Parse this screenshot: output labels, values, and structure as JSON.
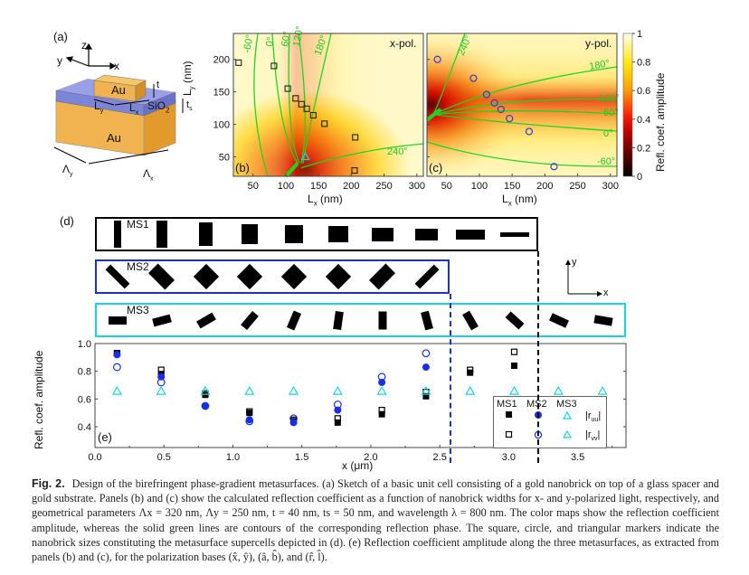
{
  "panel_a": {
    "label": "(a)",
    "axes": {
      "z": "z",
      "y": "y",
      "x": "x"
    },
    "brick": "Au",
    "spacer": "SiO",
    "spacer_sub": "2",
    "substrate": "Au",
    "dims": {
      "t": "t",
      "ts": "t",
      "ts_sub": "s",
      "Lx": "L",
      "Lx_sub": "x",
      "Ly": "L",
      "Ly_sub": "y",
      "Lambda_x": "Λ",
      "Lambda_x_sub": "x",
      "Lambda_y": "Λ",
      "Lambda_y_sub": "y"
    },
    "colors": {
      "gold": "#e8a43c",
      "gold_light": "#f5c765",
      "silica": "#7f86d6"
    }
  },
  "chart_data": [
    {
      "id": "b",
      "type": "heatmap",
      "panel_label": "(b)",
      "pol_label": "x-pol.",
      "xlabel": "L_x (nm)",
      "ylabel": "L_y (nm)",
      "xlim": [
        20,
        310
      ],
      "ylim": [
        20,
        240
      ],
      "xticks": [
        50,
        100,
        150,
        200,
        250,
        300
      ],
      "yticks": [
        50,
        100,
        150,
        200
      ],
      "contour_labels": [
        "-60°",
        "0°",
        "60°",
        "120°",
        "180°",
        "240°"
      ],
      "markers": {
        "squares": [
          [
            28,
            195
          ],
          [
            82,
            190
          ],
          [
            103,
            155
          ],
          [
            115,
            140
          ],
          [
            124,
            131
          ],
          [
            132,
            124
          ],
          [
            142,
            114
          ],
          [
            159,
            101
          ],
          [
            206,
            80
          ],
          [
            205,
            29
          ]
        ],
        "triangle": [
          [
            130,
            50
          ]
        ]
      }
    },
    {
      "id": "c",
      "type": "heatmap",
      "panel_label": "(c)",
      "pol_label": "y-pol.",
      "xlabel": "L_x (nm)",
      "ylabel": "L_y (nm)",
      "xlim": [
        20,
        310
      ],
      "ylim": [
        20,
        240
      ],
      "xticks": [
        50,
        100,
        150,
        200,
        250,
        300
      ],
      "contour_labels": [
        "240°",
        "180°",
        "120°",
        "60°",
        "0°",
        "-60°"
      ],
      "markers": {
        "circles": [
          [
            36,
            200
          ],
          [
            91,
            171
          ],
          [
            111,
            146
          ],
          [
            123,
            133
          ],
          [
            133,
            123
          ],
          [
            146,
            109
          ],
          [
            176,
            89
          ],
          [
            214,
            35
          ]
        ]
      },
      "colorbar": {
        "label": "Refl. coef. amplitude",
        "ticks": [
          "0",
          "0.2",
          "0.4",
          "0.6",
          "0.8",
          "1"
        ],
        "range": [
          0,
          1
        ]
      }
    },
    {
      "id": "e",
      "type": "scatter",
      "panel_label": "(e)",
      "xlabel": "x (μm)",
      "ylabel": "Refl. coef. amplitude",
      "xlim": [
        0.0,
        3.85
      ],
      "ylim": [
        0.25,
        1.0
      ],
      "xticks": [
        "0.0",
        "0.5",
        "1.0",
        "1.5",
        "2.0",
        "2.5",
        "3.0",
        "3.5"
      ],
      "yticks": [
        "0.4",
        "0.6",
        "0.8",
        "1.0"
      ],
      "series": [
        {
          "name": "MS1 |r_uu|",
          "marker": "filled-square",
          "color": "#000000",
          "x": [
            0.16,
            0.48,
            0.8,
            1.12,
            1.44,
            1.76,
            2.08,
            2.4,
            2.72,
            3.04
          ],
          "y": [
            0.93,
            0.78,
            0.63,
            0.5,
            0.44,
            0.43,
            0.49,
            0.62,
            0.79,
            0.84
          ]
        },
        {
          "name": "MS1 |r_vv|",
          "marker": "open-square",
          "color": "#000000",
          "x": [
            0.16,
            0.48,
            0.8,
            1.12,
            1.44,
            1.76,
            2.08,
            2.4,
            2.72,
            3.04
          ],
          "y": [
            0.93,
            0.81,
            0.64,
            0.51,
            0.45,
            0.46,
            0.52,
            0.65,
            0.81,
            0.94
          ]
        },
        {
          "name": "MS2 |r_uu|",
          "marker": "filled-circle",
          "color": "#1a2ee6",
          "x": [
            0.16,
            0.48,
            0.8,
            1.12,
            1.44,
            1.76,
            2.08,
            2.4
          ],
          "y": [
            0.92,
            0.76,
            0.55,
            0.45,
            0.43,
            0.52,
            0.72,
            0.83
          ]
        },
        {
          "name": "MS2 |r_vv|",
          "marker": "open-circle",
          "color": "#1a2ee6",
          "x": [
            0.16,
            0.48,
            0.8,
            1.12,
            1.44,
            1.76,
            2.08,
            2.4
          ],
          "y": [
            0.83,
            0.72,
            0.55,
            0.44,
            0.46,
            0.56,
            0.76,
            0.93
          ]
        },
        {
          "name": "MS3 |r_uu|",
          "marker": "open-triangle",
          "color": "#19d4e0",
          "x": [
            0.16,
            0.48,
            0.8,
            1.12,
            1.44,
            1.76,
            2.08,
            2.4,
            2.72,
            3.04,
            3.36,
            3.68
          ],
          "y": [
            0.66,
            0.66,
            0.66,
            0.66,
            0.66,
            0.66,
            0.66,
            0.66,
            0.66,
            0.66,
            0.66,
            0.66
          ]
        }
      ],
      "dashed_lines": [
        {
          "x": 2.56,
          "color": "#1a2ee6"
        },
        {
          "x": 3.2,
          "color": "#000000"
        }
      ],
      "legend": {
        "placement": "bottom-right",
        "columns": [
          "MS1",
          "MS2",
          "MS3"
        ],
        "rows": [
          "|r_uu|",
          "|r_vv|"
        ]
      }
    }
  ],
  "panel_d": {
    "label": "(d)",
    "coord_axes": {
      "x": "x",
      "y": "y"
    },
    "rows": [
      {
        "name": "MS1",
        "border": "#000000",
        "bricks": [
          {
            "w": 8,
            "h": 30,
            "rot": 0
          },
          {
            "w": 12,
            "h": 30,
            "rot": 0
          },
          {
            "w": 15,
            "h": 26,
            "rot": 0
          },
          {
            "w": 18,
            "h": 22,
            "rot": 0
          },
          {
            "w": 20,
            "h": 20,
            "rot": 0
          },
          {
            "w": 22,
            "h": 18,
            "rot": 0
          },
          {
            "w": 24,
            "h": 15,
            "rot": 0
          },
          {
            "w": 25,
            "h": 13,
            "rot": 0
          },
          {
            "w": 32,
            "h": 11,
            "rot": 0
          },
          {
            "w": 32,
            "h": 5,
            "rot": 0
          }
        ]
      },
      {
        "name": "MS2",
        "border": "#1a2ee6",
        "bricks": [
          {
            "w": 8,
            "h": 30,
            "rot": -45
          },
          {
            "w": 15,
            "h": 26,
            "rot": -45
          },
          {
            "w": 20,
            "h": 20,
            "rot": 45
          },
          {
            "w": 20,
            "h": 20,
            "rot": 45
          },
          {
            "w": 20,
            "h": 20,
            "rot": 45
          },
          {
            "w": 20,
            "h": 20,
            "rot": 45
          },
          {
            "w": 15,
            "h": 26,
            "rot": 45
          },
          {
            "w": 8,
            "h": 30,
            "rot": 45
          }
        ]
      },
      {
        "name": "MS3",
        "border": "#19d4e0",
        "bricks": [
          {
            "w": 20,
            "h": 9,
            "rot": 0
          },
          {
            "w": 20,
            "h": 9,
            "rot": -15
          },
          {
            "w": 20,
            "h": 9,
            "rot": -30
          },
          {
            "w": 20,
            "h": 9,
            "rot": -50
          },
          {
            "w": 20,
            "h": 9,
            "rot": -67
          },
          {
            "w": 20,
            "h": 9,
            "rot": -82
          },
          {
            "w": 20,
            "h": 9,
            "rot": 90
          },
          {
            "w": 20,
            "h": 9,
            "rot": 75
          },
          {
            "w": 20,
            "h": 9,
            "rot": 60
          },
          {
            "w": 20,
            "h": 9,
            "rot": 42
          },
          {
            "w": 20,
            "h": 9,
            "rot": 25
          },
          {
            "w": 20,
            "h": 9,
            "rot": 10
          }
        ]
      }
    ]
  },
  "caption": {
    "label": "Fig. 2.",
    "text": "Design of the birefringent phase-gradient metasurfaces. (a) Sketch of a basic unit cell consisting of a gold nanobrick on top of a glass spacer and gold substrate. Panels (b) and (c) show the calculated reflection coefficient as a function of nanobrick widths for x- and y-polarized light, respectively, and geometrical parameters Λx = 320 nm, Λy = 250 nm, t = 40 nm, ts = 50 nm, and wavelength λ = 800 nm. The color maps show the reflection coefficient amplitude, whereas the solid green lines are contours of the corresponding reflection phase. The square, circle, and triangular markers indicate the nanobrick sizes constituting the metasurface supercells depicted in (d). (e) Reflection coefficient amplitude along the three metasurfaces, as extracted from panels (b) and (c), for the polarization bases (x̂, ŷ), (â, b̂), and (r̂, l̂)."
  }
}
